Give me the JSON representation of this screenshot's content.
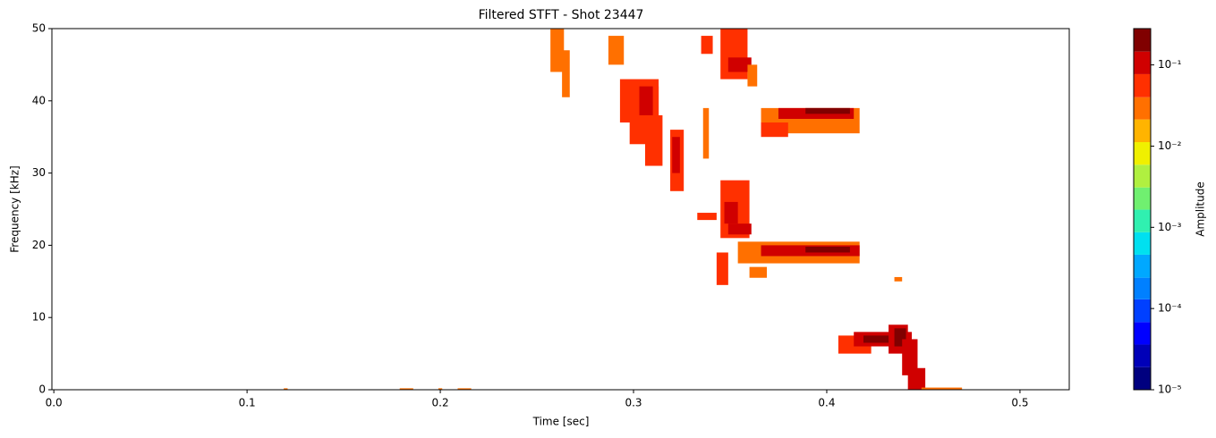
{
  "chart_data": {
    "type": "heatmap",
    "title": "Filtered STFT - Shot 23447",
    "xlabel": "Time [sec]",
    "ylabel": "Frequency [kHz]",
    "xlim": [
      -0.001,
      0.5255
    ],
    "ylim": [
      0,
      50
    ],
    "xticks": [
      {
        "value": 0,
        "label": "0.0"
      },
      0.1,
      0.2,
      0.3,
      0.4,
      0.5
    ],
    "yticks": [
      0,
      10,
      20,
      30,
      40,
      50
    ],
    "regions": [
      {
        "t": [
          0.257,
          0.264
        ],
        "f": [
          44,
          50
        ],
        "amplitude": 0.03
      },
      {
        "t": [
          0.263,
          0.267
        ],
        "f": [
          40.5,
          47
        ],
        "amplitude": 0.03
      },
      {
        "t": [
          0.287,
          0.295
        ],
        "f": [
          45,
          49
        ],
        "amplitude": 0.03
      },
      {
        "t": [
          0.293,
          0.313
        ],
        "f": [
          37,
          43
        ],
        "amplitude": 0.05
      },
      {
        "t": [
          0.298,
          0.313
        ],
        "f": [
          34,
          42
        ],
        "amplitude": 0.05
      },
      {
        "t": [
          0.303,
          0.31
        ],
        "f": [
          38,
          42
        ],
        "amplitude": 0.1
      },
      {
        "t": [
          0.306,
          0.315
        ],
        "f": [
          31,
          38
        ],
        "amplitude": 0.05
      },
      {
        "t": [
          0.319,
          0.326
        ],
        "f": [
          27.5,
          36
        ],
        "amplitude": 0.05
      },
      {
        "t": [
          0.32,
          0.324
        ],
        "f": [
          30,
          35
        ],
        "amplitude": 0.1
      },
      {
        "t": [
          0.335,
          0.341
        ],
        "f": [
          46.5,
          49
        ],
        "amplitude": 0.05
      },
      {
        "t": [
          0.336,
          0.339
        ],
        "f": [
          32,
          39
        ],
        "amplitude": 0.03
      },
      {
        "t": [
          0.345,
          0.359
        ],
        "f": [
          43,
          50
        ],
        "amplitude": 0.05
      },
      {
        "t": [
          0.349,
          0.361
        ],
        "f": [
          44,
          46
        ],
        "amplitude": 0.1
      },
      {
        "t": [
          0.359,
          0.364
        ],
        "f": [
          42,
          45
        ],
        "amplitude": 0.03
      },
      {
        "t": [
          0.366,
          0.417
        ],
        "f": [
          35.5,
          39
        ],
        "amplitude": 0.03
      },
      {
        "t": [
          0.366,
          0.38
        ],
        "f": [
          35,
          37
        ],
        "amplitude": 0.05
      },
      {
        "t": [
          0.375,
          0.414
        ],
        "f": [
          37.5,
          39
        ],
        "amplitude": 0.1
      },
      {
        "t": [
          0.389,
          0.412
        ],
        "f": [
          38.2,
          39
        ],
        "amplitude": 0.2
      },
      {
        "t": [
          0.333,
          0.343
        ],
        "f": [
          23.5,
          24.5
        ],
        "amplitude": 0.05
      },
      {
        "t": [
          0.345,
          0.36
        ],
        "f": [
          21,
          29
        ],
        "amplitude": 0.05
      },
      {
        "t": [
          0.347,
          0.354
        ],
        "f": [
          23,
          26
        ],
        "amplitude": 0.1
      },
      {
        "t": [
          0.349,
          0.361
        ],
        "f": [
          21.5,
          23
        ],
        "amplitude": 0.1
      },
      {
        "t": [
          0.343,
          0.349
        ],
        "f": [
          14.5,
          19
        ],
        "amplitude": 0.05
      },
      {
        "t": [
          0.354,
          0.417
        ],
        "f": [
          17.5,
          20.5
        ],
        "amplitude": 0.03
      },
      {
        "t": [
          0.366,
          0.417
        ],
        "f": [
          18.5,
          20
        ],
        "amplitude": 0.1
      },
      {
        "t": [
          0.389,
          0.412
        ],
        "f": [
          19,
          19.8
        ],
        "amplitude": 0.2
      },
      {
        "t": [
          0.36,
          0.369
        ],
        "f": [
          15.5,
          17
        ],
        "amplitude": 0.03
      },
      {
        "t": [
          0.406,
          0.423
        ],
        "f": [
          5,
          7.5
        ],
        "amplitude": 0.05
      },
      {
        "t": [
          0.414,
          0.444
        ],
        "f": [
          6,
          8
        ],
        "amplitude": 0.1
      },
      {
        "t": [
          0.419,
          0.44
        ],
        "f": [
          6.5,
          7.5
        ],
        "amplitude": 0.2
      },
      {
        "t": [
          0.432,
          0.442
        ],
        "f": [
          5,
          9
        ],
        "amplitude": 0.1
      },
      {
        "t": [
          0.435,
          0.441
        ],
        "f": [
          6,
          8.5
        ],
        "amplitude": 0.2
      },
      {
        "t": [
          0.439,
          0.447
        ],
        "f": [
          2,
          7
        ],
        "amplitude": 0.08
      },
      {
        "t": [
          0.442,
          0.451
        ],
        "f": [
          0,
          3
        ],
        "amplitude": 0.1
      },
      {
        "t": [
          0.449,
          0.47
        ],
        "f": [
          0,
          0.3
        ],
        "amplitude": 0.03
      },
      {
        "t": [
          0.435,
          0.439
        ],
        "f": [
          15,
          15.6
        ],
        "amplitude": 0.03
      },
      {
        "t": [
          0.119,
          0.121
        ],
        "f": [
          0,
          0.2
        ],
        "amplitude": 0.03
      },
      {
        "t": [
          0.179,
          0.186
        ],
        "f": [
          0,
          0.2
        ],
        "amplitude": 0.03
      },
      {
        "t": [
          0.199,
          0.201
        ],
        "f": [
          0,
          0.2
        ],
        "amplitude": 0.03
      },
      {
        "t": [
          0.209,
          0.216
        ],
        "f": [
          0,
          0.2
        ],
        "amplitude": 0.03
      }
    ],
    "colorbar": {
      "label": "Amplitude",
      "log": true,
      "lim": [
        1e-05,
        0.28
      ],
      "bounds": [
        1e-05,
        1.9e-05,
        3.6e-05,
        6.8e-05,
        0.00013,
        0.00024,
        0.00046,
        0.00087,
        0.00165,
        0.0031,
        0.0059,
        0.0112,
        0.0213,
        0.04,
        0.077,
        0.146,
        0.28
      ],
      "colors": [
        "#00007f",
        "#0000b8",
        "#0000ff",
        "#0040ff",
        "#0080ff",
        "#00a8ff",
        "#00e0f0",
        "#30f0b0",
        "#70f070",
        "#b0f040",
        "#f0f000",
        "#ffb400",
        "#ff7000",
        "#ff3000",
        "#d00000",
        "#800000"
      ],
      "ticks": [
        {
          "value": 1e-05,
          "label": "10⁻⁵"
        },
        {
          "value": 0.0001,
          "label": "10⁻⁴"
        },
        {
          "value": 0.001,
          "label": "10⁻³"
        },
        {
          "value": 0.01,
          "label": "10⁻²"
        },
        {
          "value": 0.1,
          "label": "10⁻¹"
        }
      ]
    }
  }
}
